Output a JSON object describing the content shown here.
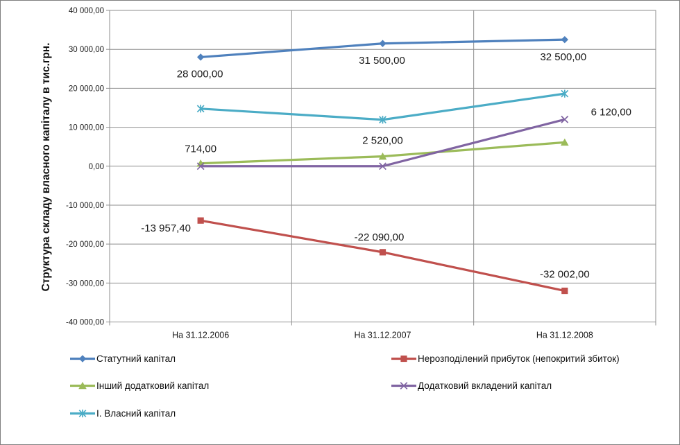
{
  "chart_data": {
    "type": "line",
    "title": "",
    "xlabel": "",
    "ylabel": "Структура складу власного капіталу в тис.грн.",
    "ylim": [
      -40000,
      40000
    ],
    "grid": true,
    "legend_position": "bottom, two columns, row-major",
    "gridline_color": "#8e8e8e",
    "categories": [
      "На 31.12.2006",
      "На 31.12.2007",
      "На 31.12.2008"
    ],
    "yticks": [
      {
        "value": 40000,
        "label": "40 000,00"
      },
      {
        "value": 30000,
        "label": "30 000,00"
      },
      {
        "value": 20000,
        "label": "20 000,00"
      },
      {
        "value": 10000,
        "label": "10 000,00"
      },
      {
        "value": 0,
        "label": "0,00"
      },
      {
        "value": -10000,
        "label": "-10 000,00"
      },
      {
        "value": -20000,
        "label": "-20 000,00"
      },
      {
        "value": -30000,
        "label": "-30 000,00"
      },
      {
        "value": -40000,
        "label": "-40 000,00"
      }
    ],
    "series": [
      {
        "name": "Статутний капітал",
        "color": "#4F81BD",
        "marker": "diamond",
        "values": [
          28000,
          31500,
          32500
        ],
        "labels": [
          {
            "text": "28 000,00",
            "dx": -1,
            "dy": 29,
            "anchor": "middle"
          },
          {
            "text": "31 500,00",
            "dx": -1,
            "dy": 29,
            "anchor": "middle"
          },
          {
            "text": "32 500,00",
            "dx": -2,
            "dy": 30,
            "anchor": "middle"
          }
        ]
      },
      {
        "name": "Нерозподілений прибуток (непокритий збиток)",
        "color": "#C0504D",
        "marker": "square",
        "values": [
          -13957.4,
          -22090,
          -32002
        ],
        "labels": [
          {
            "text": "-13 957,40",
            "dx": -50,
            "dy": 16,
            "anchor": "middle"
          },
          {
            "text": "-22 090,00",
            "dx": -5,
            "dy": -17,
            "anchor": "middle"
          },
          {
            "text": "-32 002,00",
            "dx": 0,
            "dy": -19,
            "anchor": "middle"
          }
        ]
      },
      {
        "name": "Інший додатковий капітал",
        "color": "#9BBB59",
        "marker": "triangle",
        "values": [
          714,
          2520,
          6120
        ],
        "labels": [
          {
            "text": "714,00",
            "dx": 0,
            "dy": -16,
            "anchor": "middle"
          },
          {
            "text": "2 520,00",
            "dx": 0,
            "dy": -18,
            "anchor": "middle"
          },
          {
            "text": "6 120,00",
            "dx": 67,
            "dy": -39,
            "anchor": "middle"
          }
        ]
      },
      {
        "name": "Додатковий вкладений капітал",
        "color": "#8064A2",
        "marker": "x",
        "values": [
          0,
          0,
          12000
        ],
        "labels": [
          null,
          null,
          null
        ]
      },
      {
        "name": "І. Власний капітал",
        "color": "#4BACC6",
        "marker": "star",
        "values": [
          14756.6,
          11930,
          18618
        ],
        "labels": [
          null,
          null,
          null
        ]
      }
    ]
  }
}
